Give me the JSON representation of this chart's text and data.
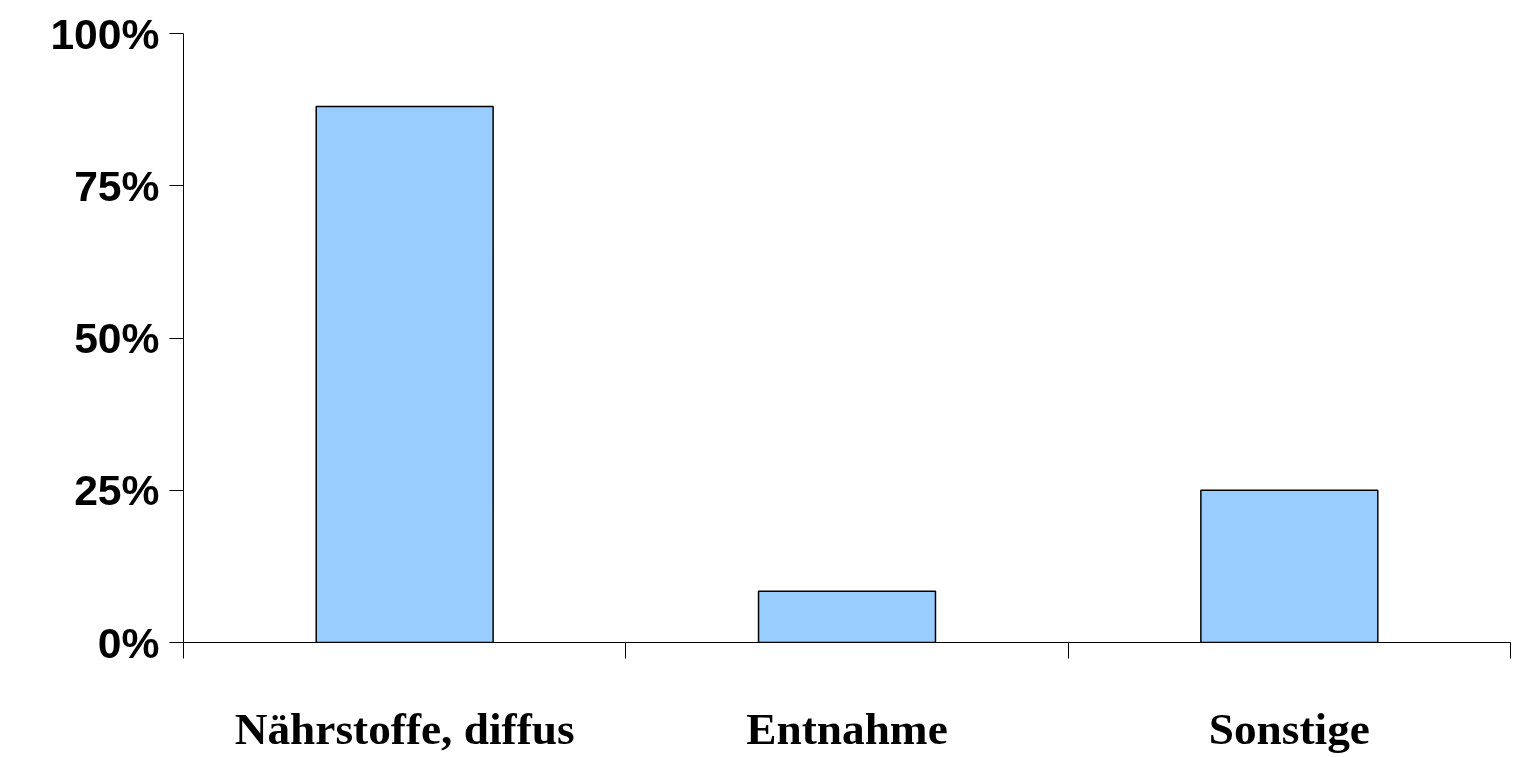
{
  "chart_data": {
    "type": "bar",
    "categories": [
      "Nährstoffe, diffus",
      "Entnahme",
      "Sonstige"
    ],
    "values": [
      88,
      8.4,
      25
    ],
    "color": "#99ccff",
    "ylim": [
      0,
      100
    ],
    "yticks": [
      {
        "value": 0,
        "label": "0%"
      },
      {
        "value": 25,
        "label": "25%"
      },
      {
        "value": 50,
        "label": "50%"
      },
      {
        "value": 75,
        "label": "75%"
      },
      {
        "value": 100,
        "label": "100%"
      }
    ],
    "grid": false
  }
}
